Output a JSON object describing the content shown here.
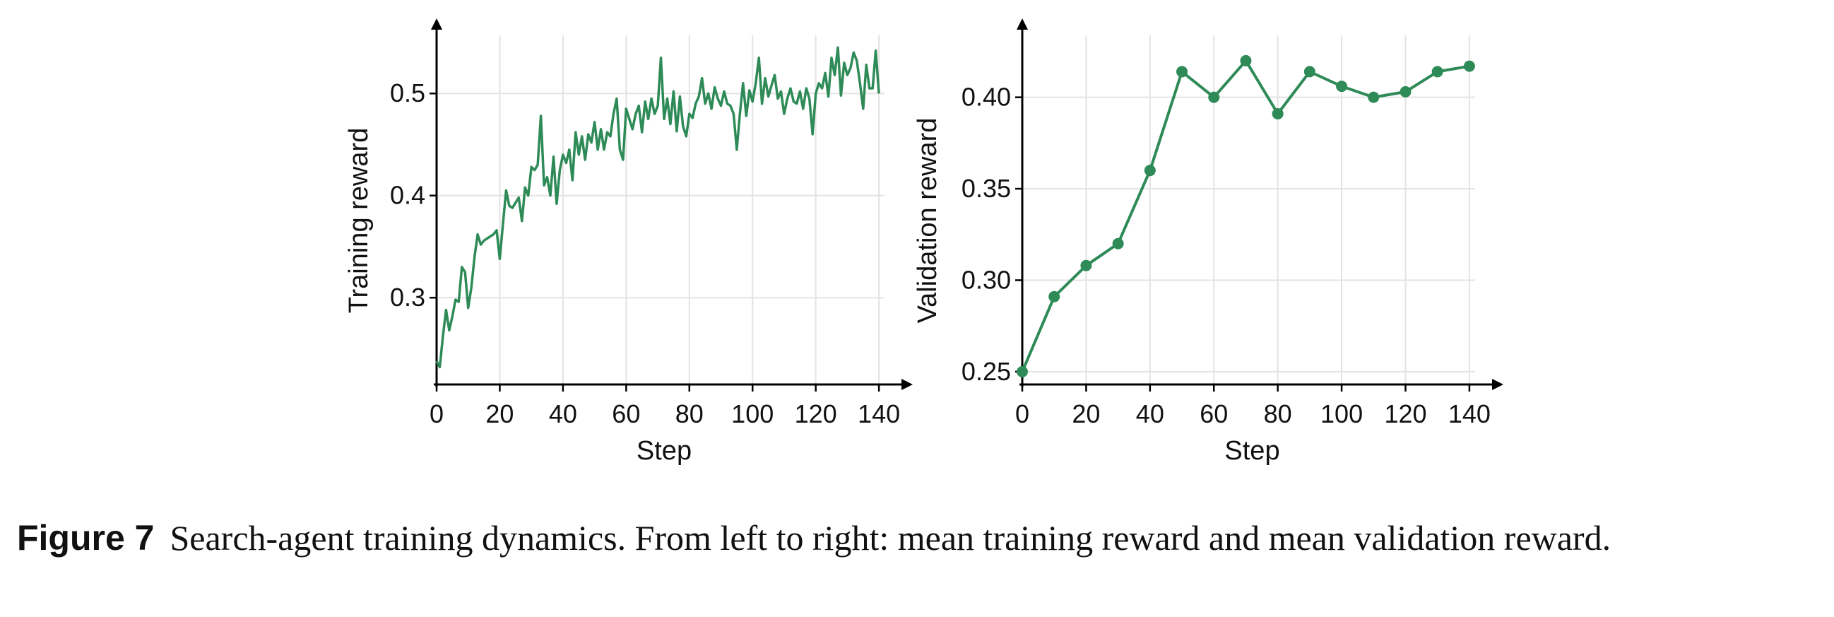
{
  "figure": {
    "label": "Figure 7",
    "caption": "Search-agent training dynamics. From left to right: mean training reward and mean validation reward."
  },
  "colors": {
    "line": "#2e8b57",
    "grid": "#e3e3e3",
    "axis": "#000000"
  },
  "chart_data": [
    {
      "type": "line",
      "xlabel": "Step",
      "ylabel": "Training reward",
      "xlim": [
        0,
        144
      ],
      "ylim": [
        0.215,
        0.55
      ],
      "xticks": [
        0,
        20,
        40,
        60,
        80,
        100,
        120,
        140
      ],
      "yticks": [
        0.3,
        0.4,
        0.5
      ],
      "ytick_labels": [
        "0.3",
        "0.4",
        "0.5"
      ],
      "grid": true,
      "markers": false,
      "series": [
        {
          "x": [
            0,
            1,
            2,
            3,
            4,
            5,
            6,
            7,
            8,
            9,
            10,
            11,
            12,
            13,
            14,
            15,
            16,
            17,
            18,
            19,
            20,
            21,
            22,
            23,
            24,
            25,
            26,
            27,
            28,
            29,
            30,
            31,
            32,
            33,
            34,
            35,
            36,
            37,
            38,
            39,
            40,
            41,
            42,
            43,
            44,
            45,
            46,
            47,
            48,
            49,
            50,
            51,
            52,
            53,
            54,
            55,
            56,
            57,
            58,
            59,
            60,
            61,
            62,
            63,
            64,
            65,
            66,
            67,
            68,
            69,
            70,
            71,
            72,
            73,
            74,
            75,
            76,
            77,
            78,
            79,
            80,
            81,
            82,
            83,
            84,
            85,
            86,
            87,
            88,
            89,
            90,
            91,
            92,
            93,
            94,
            95,
            96,
            97,
            98,
            99,
            100,
            101,
            102,
            103,
            104,
            105,
            106,
            107,
            108,
            109,
            110,
            111,
            112,
            113,
            114,
            115,
            116,
            117,
            118,
            119,
            120,
            121,
            122,
            123,
            124,
            125,
            126,
            127,
            128,
            129,
            130,
            131,
            132,
            133,
            134,
            135,
            136,
            137,
            138,
            139,
            140
          ],
          "y": [
            0.238,
            0.232,
            0.262,
            0.288,
            0.268,
            0.282,
            0.298,
            0.296,
            0.33,
            0.325,
            0.29,
            0.31,
            0.34,
            0.362,
            0.352,
            0.356,
            0.358,
            0.36,
            0.362,
            0.366,
            0.338,
            0.372,
            0.405,
            0.39,
            0.388,
            0.393,
            0.398,
            0.375,
            0.408,
            0.4,
            0.428,
            0.425,
            0.43,
            0.478,
            0.41,
            0.418,
            0.4,
            0.438,
            0.392,
            0.425,
            0.44,
            0.432,
            0.445,
            0.415,
            0.462,
            0.44,
            0.458,
            0.435,
            0.46,
            0.452,
            0.472,
            0.445,
            0.465,
            0.445,
            0.462,
            0.458,
            0.48,
            0.495,
            0.445,
            0.435,
            0.485,
            0.475,
            0.465,
            0.48,
            0.488,
            0.462,
            0.492,
            0.475,
            0.495,
            0.48,
            0.488,
            0.535,
            0.475,
            0.495,
            0.47,
            0.502,
            0.463,
            0.497,
            0.468,
            0.458,
            0.48,
            0.476,
            0.49,
            0.497,
            0.515,
            0.49,
            0.5,
            0.485,
            0.506,
            0.495,
            0.488,
            0.502,
            0.49,
            0.488,
            0.48,
            0.445,
            0.48,
            0.51,
            0.478,
            0.503,
            0.492,
            0.51,
            0.535,
            0.49,
            0.515,
            0.497,
            0.508,
            0.518,
            0.495,
            0.502,
            0.48,
            0.495,
            0.505,
            0.492,
            0.49,
            0.502,
            0.485,
            0.505,
            0.495,
            0.46,
            0.5,
            0.51,
            0.505,
            0.52,
            0.497,
            0.535,
            0.518,
            0.545,
            0.498,
            0.53,
            0.518,
            0.525,
            0.54,
            0.532,
            0.51,
            0.485,
            0.528,
            0.505,
            0.505,
            0.542,
            0.5
          ]
        }
      ]
    },
    {
      "type": "line",
      "xlabel": "Step",
      "ylabel": "Validation reward",
      "xlim": [
        0,
        144
      ],
      "ylim": [
        0.243,
        0.43
      ],
      "xticks": [
        0,
        20,
        40,
        60,
        80,
        100,
        120,
        140
      ],
      "yticks": [
        0.25,
        0.3,
        0.35,
        0.4
      ],
      "ytick_labels": [
        "0.25",
        "0.30",
        "0.35",
        "0.40"
      ],
      "grid": true,
      "markers": true,
      "series": [
        {
          "x": [
            0,
            10,
            20,
            30,
            40,
            50,
            60,
            70,
            80,
            90,
            100,
            110,
            120,
            130,
            140
          ],
          "y": [
            0.25,
            0.291,
            0.308,
            0.32,
            0.36,
            0.414,
            0.4,
            0.42,
            0.391,
            0.414,
            0.406,
            0.4,
            0.403,
            0.414,
            0.417
          ]
        }
      ]
    }
  ]
}
